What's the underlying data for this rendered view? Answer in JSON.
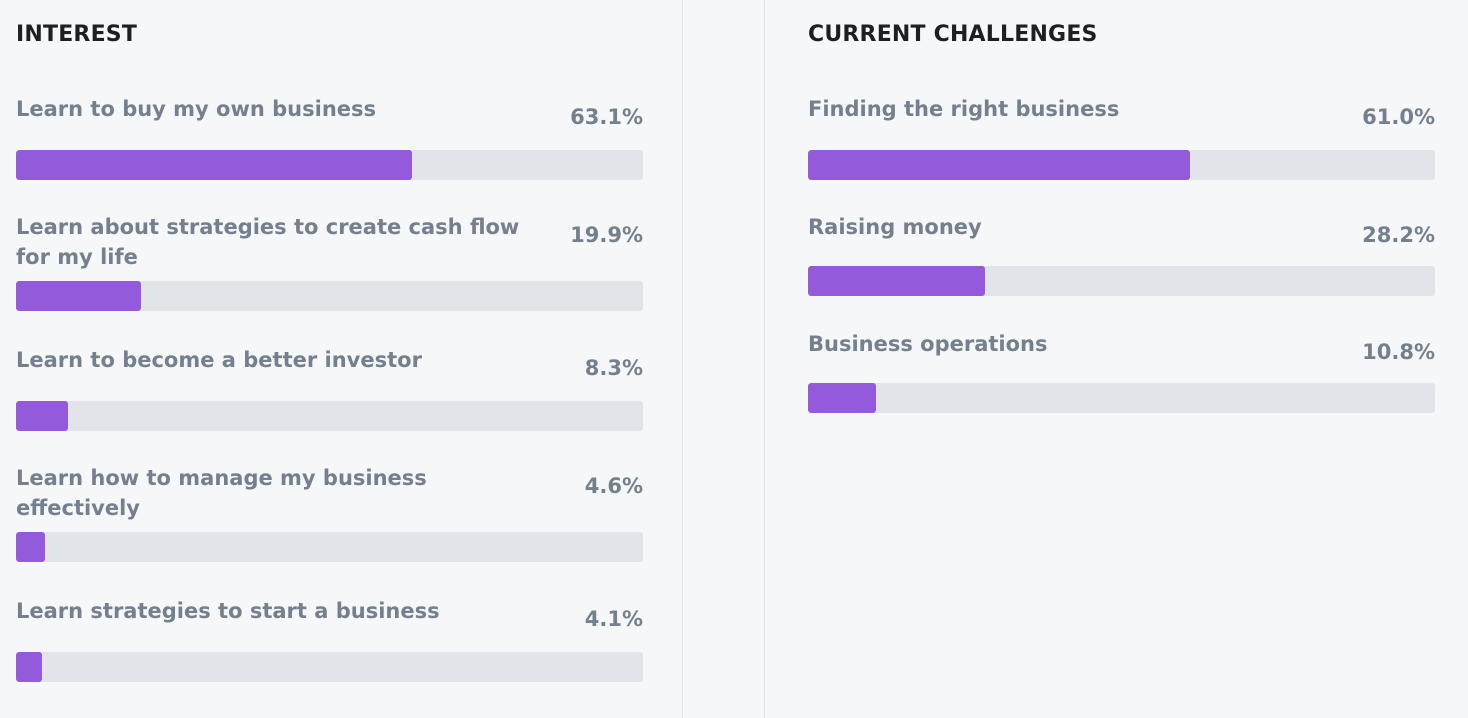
{
  "colors": {
    "background": "#f6f7f8",
    "bar_fill": "#935bdc",
    "bar_track": "#e1e5ea",
    "label_text": "#74808d",
    "title_text": "#1c1f23"
  },
  "chart_data": [
    {
      "type": "bar",
      "orientation": "horizontal",
      "title": "INTEREST",
      "xlim": [
        0,
        100
      ],
      "unit": "%",
      "categories": [
        "Learn to buy my own business",
        "Learn about strategies to create cash flow for my life",
        "Learn to become a better investor",
        "Learn how to manage my business effectively",
        "Learn strategies to start a business"
      ],
      "values": [
        63.1,
        19.9,
        8.3,
        4.6,
        4.1
      ],
      "value_labels": [
        "63.1%",
        "19.9%",
        "8.3%",
        "4.6%",
        "4.1%"
      ]
    },
    {
      "type": "bar",
      "orientation": "horizontal",
      "title": "CURRENT CHALLENGES",
      "xlim": [
        0,
        100
      ],
      "unit": "%",
      "categories": [
        "Finding the right business",
        "Raising money",
        "Business operations"
      ],
      "values": [
        61.0,
        28.2,
        10.8
      ],
      "value_labels": [
        "61.0%",
        "28.2%",
        "10.8%"
      ]
    }
  ]
}
